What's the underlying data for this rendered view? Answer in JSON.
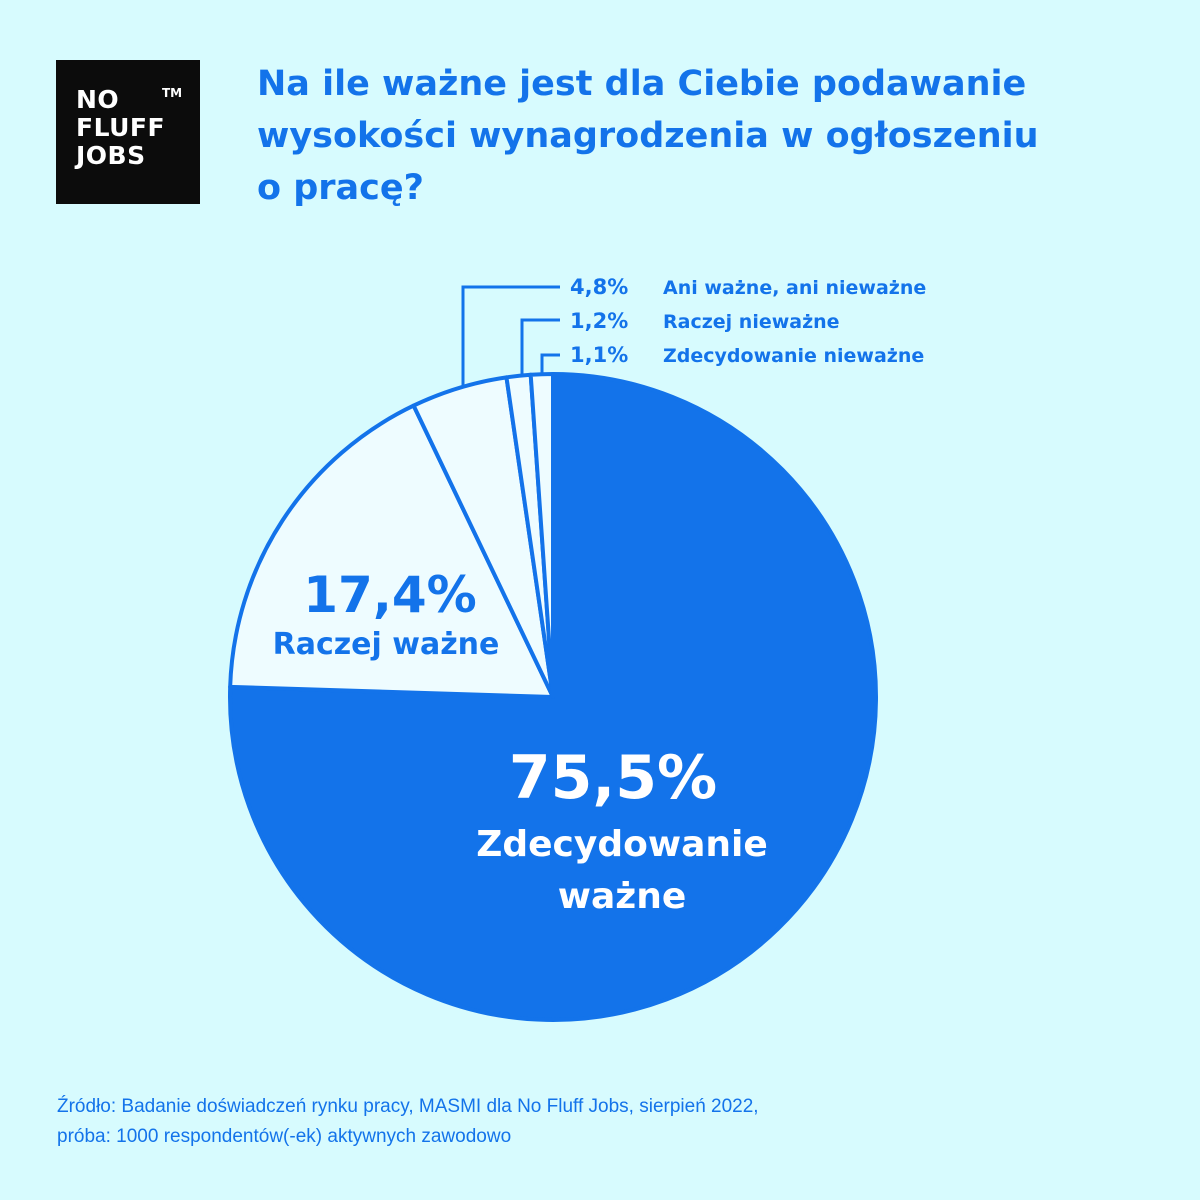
{
  "logo": {
    "line1": "NO",
    "line2": "FLUFF",
    "line3": "JOBS",
    "tm": "TM"
  },
  "title": {
    "line1": "Na ile ważne jest dla Ciebie podawanie",
    "line2": "wysokości wynagrodzenia w ogłoszeniu",
    "line3": "o pracę?"
  },
  "colors": {
    "background": "#d7fbfe",
    "accent": "#1373ea",
    "slice_light": "#eefcff",
    "white": "#ffffff"
  },
  "chart_data": {
    "type": "pie",
    "title": "Na ile ważne jest dla Ciebie podawanie wysokości wynagrodzenia w ogłoszeniu o pracę?",
    "slices": [
      {
        "label": "Zdecydowanie ważne",
        "value": 75.5,
        "value_label": "75,5%",
        "label_lines": [
          "Zdecydowanie",
          "ważne"
        ]
      },
      {
        "label": "Raczej ważne",
        "value": 17.4,
        "value_label": "17,4%",
        "label_lines": [
          "Raczej ważne"
        ]
      },
      {
        "label": "Ani ważne, ani nieważne",
        "value": 4.8,
        "value_label": "4,8%",
        "label_lines": [
          "Ani ważne, ani nieważne"
        ]
      },
      {
        "label": "Raczej nieważne",
        "value": 1.2,
        "value_label": "1,2%",
        "label_lines": [
          "Raczej nieważne"
        ]
      },
      {
        "label": "Zdecydowanie nieważne",
        "value": 1.1,
        "value_label": "1,1%",
        "label_lines": [
          "Zdecydowanie nieważne"
        ]
      }
    ]
  },
  "footer": {
    "line1": "Źródło: Badanie doświadczeń rynku pracy, MASMI dla No Fluff Jobs, sierpień 2022,",
    "line2": "próba: 1000 respondentów(-ek) aktywnych zawodowo"
  }
}
